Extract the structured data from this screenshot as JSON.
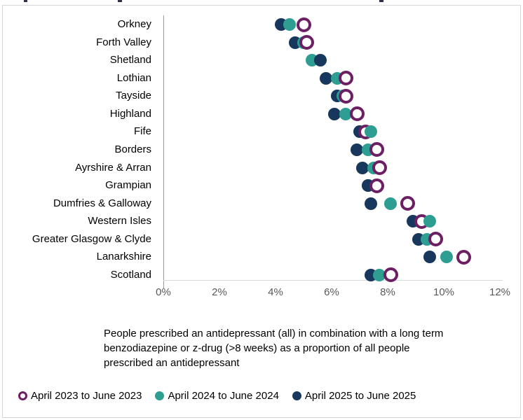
{
  "chart_data": {
    "type": "scatter",
    "title": "",
    "caption": "People prescribed an antidepressant (all) in combination with a long term benzodiazepine or z-drug (>8 weeks) as a proportion of all people prescribed an antidepressant",
    "categories": [
      "Orkney",
      "Forth Valley",
      "Shetland",
      "Lothian",
      "Tayside",
      "Highland",
      "Fife",
      "Borders",
      "Ayrshire & Arran",
      "Grampian",
      "Dumfries & Galloway",
      "Western Isles",
      "Greater Glasgow & Clyde",
      "Lanarkshire",
      "Scotland"
    ],
    "series": [
      {
        "name": "April 2023 to June 2023",
        "marker": "open-circle",
        "color": "#6d1f63",
        "values": [
          5.0,
          5.1,
          null,
          6.5,
          6.5,
          6.9,
          7.2,
          7.6,
          7.7,
          7.6,
          8.7,
          9.2,
          9.7,
          10.7,
          8.1
        ]
      },
      {
        "name": "April 2024 to June 2024",
        "marker": "filled-circle",
        "color": "#2e9e93",
        "values": [
          4.5,
          5.0,
          5.3,
          6.2,
          6.4,
          6.5,
          7.4,
          7.3,
          7.5,
          7.3,
          8.1,
          9.5,
          9.4,
          10.1,
          7.7
        ]
      },
      {
        "name": "April 2025 to June 2025",
        "marker": "filled-circle",
        "color": "#17375c",
        "values": [
          4.2,
          4.7,
          5.6,
          5.8,
          6.2,
          6.1,
          7.0,
          6.9,
          7.1,
          7.3,
          7.4,
          8.9,
          9.1,
          9.5,
          7.4
        ]
      }
    ],
    "x_ticks": [
      {
        "value": 0,
        "label": "0%"
      },
      {
        "value": 2,
        "label": "2%"
      },
      {
        "value": 4,
        "label": "4%"
      },
      {
        "value": 6,
        "label": "6%"
      },
      {
        "value": 8,
        "label": "8%"
      },
      {
        "value": 10,
        "label": "10%"
      },
      {
        "value": 12,
        "label": "12%"
      }
    ],
    "xlim": [
      0,
      12
    ],
    "grid": false,
    "legend_position": "bottom"
  }
}
